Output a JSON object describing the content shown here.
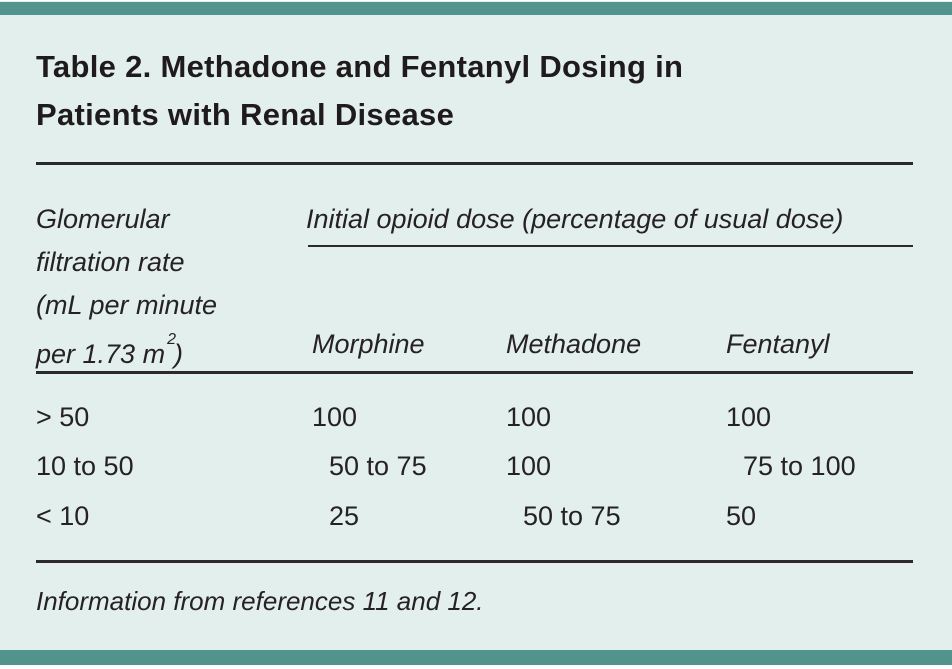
{
  "colors": {
    "accent_teal": "#52948d",
    "sheet_background": "#e3efec",
    "text": "#262223",
    "rule": "#2d292a"
  },
  "title": {
    "line1": "Table 2. Methadone and Fentanyl Dosing in",
    "line2": "Patients with Renal Disease"
  },
  "table": {
    "row_header": {
      "line1": "Glomerular",
      "line2": "filtration rate",
      "line3": "(mL per minute",
      "line4_pre": "per 1.73 m",
      "line4_sup": "2",
      "line4_post": ")"
    },
    "group_header": "Initial opioid dose (percentage of usual dose)",
    "columns": {
      "morphine": "Morphine",
      "methadone": "Methadone",
      "fentanyl": "Fentanyl"
    },
    "rows": [
      {
        "gfr": "> 50",
        "morphine": "100",
        "methadone": "100",
        "fentanyl": "100"
      },
      {
        "gfr": "10 to 50",
        "morphine": "50 to 75",
        "methadone": "100",
        "fentanyl": "75 to 100"
      },
      {
        "gfr": "< 10",
        "morphine": "25",
        "methadone": "50 to 75",
        "fentanyl": "50"
      }
    ]
  },
  "footnote": "Information from references 11 and 12."
}
